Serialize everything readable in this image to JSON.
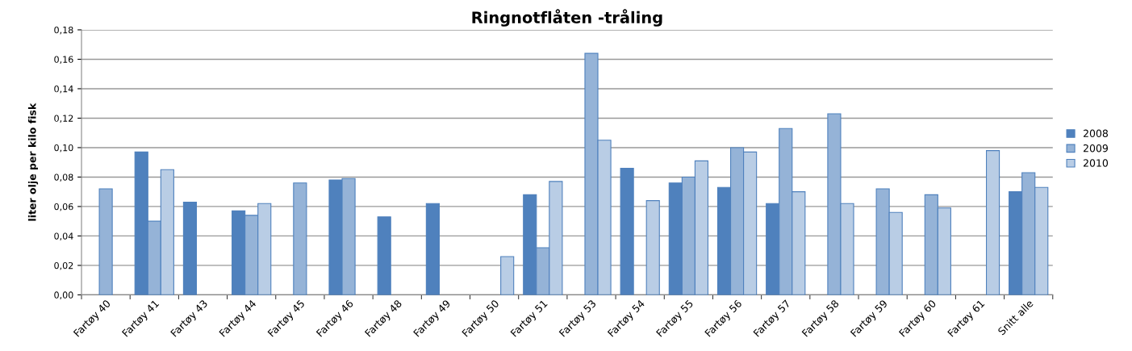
{
  "chart_data": {
    "type": "bar",
    "title": "Ringnotflåten -tråling",
    "ylabel": "liter olje per kilo fisk",
    "categories": [
      "Fartøy 40",
      "Fartøy 41",
      "Fartøy 43",
      "Fartøy 44",
      "Fartøy 45",
      "Fartøy 46",
      "Fartøy 48",
      "Fartøy 49",
      "Fartøy 50",
      "Fartøy 51",
      "Fartøy 53",
      "Fartøy 54",
      "Fartøy 55",
      "Fartøy 56",
      "Fartøy 57",
      "Fartøy 58",
      "Fartøy 59",
      "Fartøy 60",
      "Fartøy 61",
      "Snitt alle"
    ],
    "series": [
      {
        "name": "2008",
        "color": "#4f81bd",
        "values": [
          null,
          0.097,
          0.063,
          0.057,
          null,
          0.078,
          0.053,
          0.062,
          null,
          0.068,
          null,
          0.086,
          0.076,
          0.073,
          0.062,
          null,
          null,
          null,
          null,
          0.07
        ]
      },
      {
        "name": "2009",
        "color": "#95b3d7",
        "values": [
          0.072,
          0.05,
          null,
          0.054,
          0.076,
          0.079,
          null,
          null,
          null,
          0.032,
          0.164,
          null,
          0.08,
          0.1,
          0.113,
          0.123,
          0.072,
          0.068,
          null,
          0.083
        ]
      },
      {
        "name": "2010",
        "color": "#b9cde5",
        "values": [
          null,
          0.085,
          null,
          0.062,
          null,
          null,
          null,
          null,
          0.026,
          0.077,
          0.105,
          0.064,
          0.091,
          0.097,
          0.07,
          0.062,
          0.056,
          0.059,
          0.098,
          0.073
        ]
      }
    ],
    "ylim": [
      0,
      0.18
    ],
    "yticks": [
      {
        "value": 0,
        "label": "0,00"
      },
      {
        "value": 0.02,
        "label": "0,02"
      },
      {
        "value": 0.04,
        "label": "0,04"
      },
      {
        "value": 0.06,
        "label": "0,06"
      },
      {
        "value": 0.08,
        "label": "0,08"
      },
      {
        "value": 0.1,
        "label": "0,10"
      },
      {
        "value": 0.12,
        "label": "0,12"
      },
      {
        "value": 0.14,
        "label": "0,14"
      },
      {
        "value": 0.16,
        "label": "0,16"
      },
      {
        "value": 0.18,
        "label": "0,18"
      }
    ],
    "grid": "y",
    "legend": "right"
  }
}
